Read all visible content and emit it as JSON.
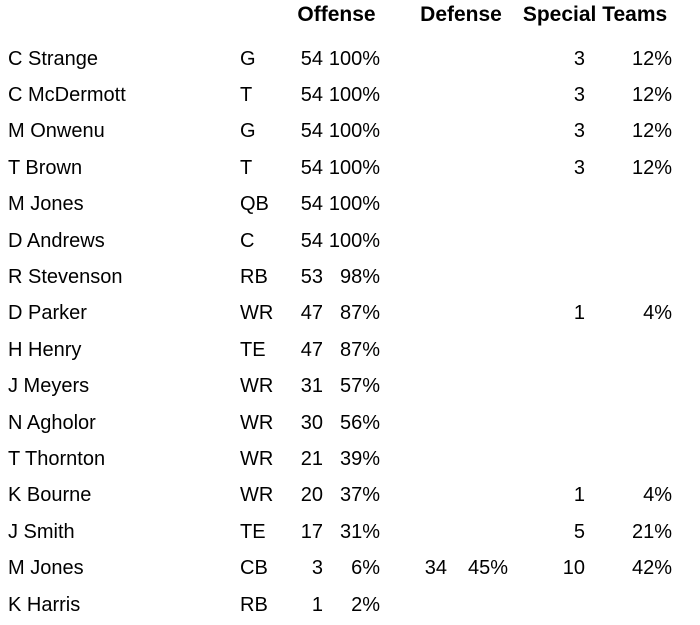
{
  "page": {
    "background_color": "#ffffff",
    "text_color": "#000000"
  },
  "chart_data": {
    "type": "table",
    "title": "",
    "headers": {
      "offense": "Offense",
      "defense": "Defense",
      "special_teams": "Special Teams"
    },
    "column_keys": [
      "name",
      "pos",
      "off_snaps",
      "off_pct",
      "def_snaps",
      "def_pct",
      "st_snaps",
      "st_pct"
    ],
    "rows": [
      {
        "name": "C Strange",
        "pos": "G",
        "off_snaps": "54",
        "off_pct": "100%",
        "def_snaps": "",
        "def_pct": "",
        "st_snaps": "3",
        "st_pct": "12%"
      },
      {
        "name": "C McDermott",
        "pos": "T",
        "off_snaps": "54",
        "off_pct": "100%",
        "def_snaps": "",
        "def_pct": "",
        "st_snaps": "3",
        "st_pct": "12%"
      },
      {
        "name": "M Onwenu",
        "pos": "G",
        "off_snaps": "54",
        "off_pct": "100%",
        "def_snaps": "",
        "def_pct": "",
        "st_snaps": "3",
        "st_pct": "12%"
      },
      {
        "name": "T Brown",
        "pos": "T",
        "off_snaps": "54",
        "off_pct": "100%",
        "def_snaps": "",
        "def_pct": "",
        "st_snaps": "3",
        "st_pct": "12%"
      },
      {
        "name": "M Jones",
        "pos": "QB",
        "off_snaps": "54",
        "off_pct": "100%",
        "def_snaps": "",
        "def_pct": "",
        "st_snaps": "",
        "st_pct": ""
      },
      {
        "name": "D Andrews",
        "pos": "C",
        "off_snaps": "54",
        "off_pct": "100%",
        "def_snaps": "",
        "def_pct": "",
        "st_snaps": "",
        "st_pct": ""
      },
      {
        "name": "R Stevenson",
        "pos": "RB",
        "off_snaps": "53",
        "off_pct": "98%",
        "def_snaps": "",
        "def_pct": "",
        "st_snaps": "",
        "st_pct": ""
      },
      {
        "name": "D Parker",
        "pos": "WR",
        "off_snaps": "47",
        "off_pct": "87%",
        "def_snaps": "",
        "def_pct": "",
        "st_snaps": "1",
        "st_pct": "4%"
      },
      {
        "name": "H Henry",
        "pos": "TE",
        "off_snaps": "47",
        "off_pct": "87%",
        "def_snaps": "",
        "def_pct": "",
        "st_snaps": "",
        "st_pct": ""
      },
      {
        "name": "J Meyers",
        "pos": "WR",
        "off_snaps": "31",
        "off_pct": "57%",
        "def_snaps": "",
        "def_pct": "",
        "st_snaps": "",
        "st_pct": ""
      },
      {
        "name": "N Agholor",
        "pos": "WR",
        "off_snaps": "30",
        "off_pct": "56%",
        "def_snaps": "",
        "def_pct": "",
        "st_snaps": "",
        "st_pct": ""
      },
      {
        "name": "T Thornton",
        "pos": "WR",
        "off_snaps": "21",
        "off_pct": "39%",
        "def_snaps": "",
        "def_pct": "",
        "st_snaps": "",
        "st_pct": ""
      },
      {
        "name": "K Bourne",
        "pos": "WR",
        "off_snaps": "20",
        "off_pct": "37%",
        "def_snaps": "",
        "def_pct": "",
        "st_snaps": "1",
        "st_pct": "4%"
      },
      {
        "name": "J Smith",
        "pos": "TE",
        "off_snaps": "17",
        "off_pct": "31%",
        "def_snaps": "",
        "def_pct": "",
        "st_snaps": "5",
        "st_pct": "21%"
      },
      {
        "name": "M Jones",
        "pos": "CB",
        "off_snaps": "3",
        "off_pct": "6%",
        "def_snaps": "34",
        "def_pct": "45%",
        "st_snaps": "10",
        "st_pct": "42%"
      },
      {
        "name": "K Harris",
        "pos": "RB",
        "off_snaps": "1",
        "off_pct": "2%",
        "def_snaps": "",
        "def_pct": "",
        "st_snaps": "",
        "st_pct": ""
      }
    ]
  }
}
